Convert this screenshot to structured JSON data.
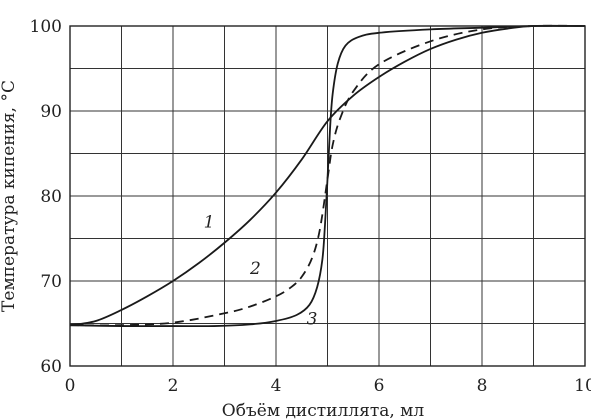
{
  "chart_data": {
    "type": "line",
    "title": "",
    "xlabel": "Объём дистиллята, мл",
    "ylabel": "Температура кипения, °C",
    "xlim": [
      0,
      10
    ],
    "ylim": [
      60,
      100
    ],
    "x_ticks": [
      0,
      2,
      4,
      6,
      8,
      10
    ],
    "y_ticks": [
      60,
      70,
      80,
      90,
      100
    ],
    "x_grid_step": 1,
    "y_grid_step": 5,
    "grid": true,
    "series": [
      {
        "name": "1",
        "style": "solid",
        "x": [
          0,
          0.5,
          1,
          1.5,
          2,
          2.5,
          3,
          3.5,
          4,
          4.5,
          5,
          5.5,
          6,
          6.5,
          7,
          7.5,
          8,
          8.5,
          9,
          10
        ],
        "y": [
          64.8,
          65.3,
          66.6,
          68.2,
          70,
          72.1,
          74.5,
          77.2,
          80.4,
          84.3,
          88.8,
          91.8,
          94,
          95.8,
          97.3,
          98.4,
          99.2,
          99.7,
          100,
          100
        ]
      },
      {
        "name": "2",
        "style": "dashed",
        "x": [
          0,
          1,
          2,
          3,
          3.5,
          4,
          4.3,
          4.5,
          4.7,
          4.85,
          5,
          5.1,
          5.25,
          5.5,
          6,
          7,
          8,
          9,
          10
        ],
        "y": [
          64.8,
          64.8,
          65.1,
          66.2,
          67,
          68.2,
          69.3,
          70.5,
          72.7,
          76,
          82,
          86,
          89.2,
          92.3,
          95.5,
          98.2,
          99.6,
          100,
          100
        ]
      },
      {
        "name": "3",
        "style": "solid",
        "x": [
          0,
          1,
          2,
          2.8,
          3.5,
          4,
          4.4,
          4.65,
          4.8,
          4.9,
          4.95,
          5,
          5.05,
          5.1,
          5.2,
          5.35,
          5.6,
          6,
          7,
          8,
          9,
          10
        ],
        "y": [
          64.8,
          64.7,
          64.7,
          64.7,
          64.9,
          65.3,
          66,
          67.2,
          69.3,
          72.5,
          76.5,
          82,
          88,
          92,
          95.6,
          97.7,
          98.7,
          99.2,
          99.6,
          99.8,
          100,
          100
        ]
      }
    ],
    "curve_labels": [
      {
        "text": "1",
        "x": 2.7,
        "y": 76.3
      },
      {
        "text": "2",
        "x": 3.6,
        "y": 70.8
      },
      {
        "text": "3",
        "x": 4.7,
        "y": 64.9
      }
    ]
  }
}
